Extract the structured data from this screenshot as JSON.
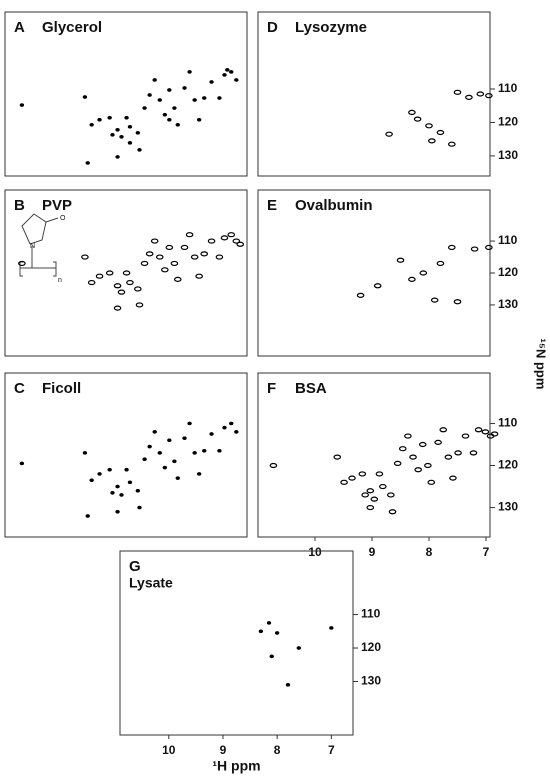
{
  "chart_data": [
    {
      "type": "scatter",
      "label": "A",
      "title": "Glycerol",
      "color": "#000000",
      "marker": "dot",
      "xlim": [
        11.03,
        6.73
      ],
      "ylim": [
        136,
        87
      ],
      "x": [
        10.73,
        9.61,
        9.35,
        9.49,
        9.17,
        9.03,
        9.12,
        8.96,
        8.87,
        8.81,
        8.67,
        8.64,
        8.55,
        8.46,
        8.37,
        8.28,
        8.19,
        8.11,
        8.11,
        8.02,
        7.96,
        7.84,
        7.75,
        7.66,
        7.58,
        7.49,
        7.36,
        7.22,
        7.13,
        7.08,
        7.01,
        6.92,
        9.56,
        9.03,
        8.81
      ],
      "y": [
        114.8,
        112.4,
        119.2,
        120.7,
        118.6,
        122.2,
        123.7,
        124.3,
        118.6,
        121.3,
        123.1,
        128.2,
        115.7,
        111.8,
        107.3,
        113.3,
        117.7,
        110.3,
        119.2,
        115.7,
        120.7,
        109.7,
        104.9,
        113.3,
        119.2,
        112.7,
        107.9,
        112.7,
        105.8,
        104.3,
        104.9,
        107.3,
        132.1,
        130.3,
        126.1
      ]
    },
    {
      "type": "scatter",
      "label": "B",
      "title": "PVP",
      "color": "#000000",
      "marker": "ring",
      "structure_text": [
        "N",
        "O",
        "n"
      ],
      "xlim": [
        11.03,
        6.73
      ],
      "ylim": [
        146,
        94
      ],
      "x": [
        10.73,
        9.61,
        9.35,
        9.49,
        9.17,
        9.03,
        8.96,
        8.87,
        8.81,
        8.67,
        8.64,
        8.55,
        8.46,
        8.37,
        8.28,
        8.19,
        8.11,
        8.02,
        7.96,
        7.84,
        7.75,
        7.66,
        7.58,
        7.49,
        7.36,
        7.22,
        7.13,
        7.01,
        6.92,
        6.85,
        9.03
      ],
      "y": [
        117,
        115,
        121,
        123,
        120,
        124,
        126,
        120,
        123,
        125,
        130,
        117,
        114,
        110,
        115,
        119,
        112,
        117,
        122,
        112,
        108,
        115,
        121,
        114,
        110,
        115,
        109,
        108,
        110,
        111,
        131
      ]
    },
    {
      "type": "scatter",
      "label": "C",
      "title": "Ficoll",
      "color": "#000000",
      "marker": "dot",
      "xlim": [
        11.03,
        6.73
      ],
      "ylim": [
        137,
        98
      ],
      "x": [
        10.73,
        9.61,
        9.35,
        9.49,
        9.17,
        9.03,
        9.12,
        8.96,
        8.87,
        8.81,
        8.67,
        8.64,
        8.55,
        8.46,
        8.37,
        8.28,
        8.19,
        8.11,
        8.02,
        7.96,
        7.84,
        7.75,
        7.66,
        7.58,
        7.49,
        7.36,
        7.22,
        7.13,
        7.01,
        6.92,
        9.56,
        9.03
      ],
      "y": [
        119.5,
        117,
        122,
        123.5,
        121,
        125,
        126.5,
        127,
        121,
        124,
        126,
        130,
        118.5,
        115.5,
        112,
        117,
        120.5,
        114,
        119,
        123,
        113.5,
        110,
        117,
        122,
        116.5,
        112.5,
        116.5,
        111,
        110,
        112,
        132,
        131
      ]
    },
    {
      "type": "scatter",
      "label": "D",
      "title": "Lysozyme",
      "color": "#000000",
      "marker": "ring",
      "xlim": [
        11.0,
        6.93
      ],
      "ylim": [
        136,
        87
      ],
      "yticks": [
        110,
        120,
        130
      ],
      "x": [
        7.5,
        7.1,
        6.95,
        7.3,
        7.6,
        7.95,
        8.3,
        8.2,
        8.7,
        8.0,
        7.8
      ],
      "y": [
        111,
        111.5,
        112,
        112.5,
        126.5,
        125.5,
        117,
        119,
        123.5,
        121,
        123
      ]
    },
    {
      "type": "scatter",
      "label": "E",
      "title": "Ovalbumin",
      "color": "#000000",
      "marker": "ring",
      "ylabel": "¹⁵N ppm",
      "xlim": [
        11.0,
        6.93
      ],
      "ylim": [
        146,
        94
      ],
      "yticks": [
        110,
        120,
        130
      ],
      "x": [
        7.6,
        7.2,
        6.95,
        7.5,
        7.9,
        8.9,
        9.2,
        8.3,
        8.1,
        7.8,
        8.5
      ],
      "y": [
        112,
        112.5,
        112,
        129,
        128.5,
        124,
        127,
        122,
        120,
        117,
        116
      ]
    },
    {
      "type": "scatter",
      "label": "F",
      "title": "BSA",
      "color": "#000000",
      "marker": "ring",
      "xlim": [
        11.0,
        6.93
      ],
      "ylim": [
        137,
        98
      ],
      "xticks": [
        10,
        9,
        8,
        7
      ],
      "yticks": [
        110,
        120,
        130
      ],
      "x": [
        10.73,
        9.61,
        9.35,
        9.49,
        9.17,
        9.03,
        9.12,
        8.96,
        8.87,
        8.81,
        8.67,
        8.64,
        8.55,
        8.46,
        8.37,
        8.28,
        8.19,
        8.11,
        8.02,
        7.96,
        7.84,
        7.75,
        7.66,
        7.58,
        7.49,
        7.36,
        7.22,
        7.13,
        7.01,
        6.92,
        6.85,
        9.03
      ],
      "y": [
        120,
        118,
        123,
        124,
        122,
        126,
        127,
        128,
        122,
        125,
        127,
        131,
        119.5,
        116,
        113,
        118,
        121,
        115,
        120,
        124,
        114.5,
        111.5,
        118,
        123,
        117,
        113,
        117,
        111.5,
        112,
        113,
        112.5,
        130
      ]
    },
    {
      "type": "scatter",
      "label": "G",
      "title": "Lysate",
      "color": "#000000",
      "marker": "dot",
      "xlabel": "¹H ppm",
      "xlim": [
        10.9,
        6.6
      ],
      "ylim": [
        146,
        91
      ],
      "xticks": [
        10,
        9,
        8,
        7
      ],
      "yticks": [
        110,
        120,
        130
      ],
      "x": [
        8.3,
        8.0,
        8.1,
        7.8,
        8.15,
        7.6,
        7.0
      ],
      "y": [
        115,
        115.5,
        122.5,
        131,
        112.5,
        120,
        114
      ]
    }
  ]
}
